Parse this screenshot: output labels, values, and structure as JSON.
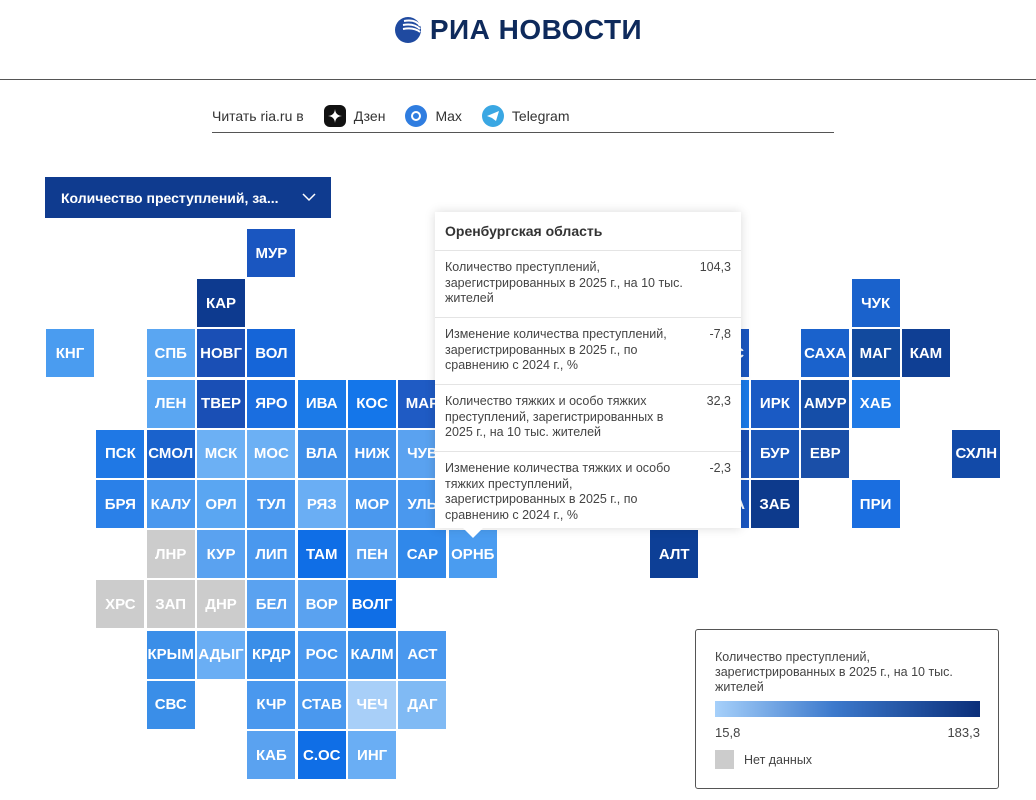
{
  "header": {
    "logo_text": "РИА НОВОСТИ"
  },
  "readbar": {
    "label": "Читать ria.ru в",
    "links": [
      {
        "label": "Дзен",
        "icon": "dzen-icon"
      },
      {
        "label": "Max",
        "icon": "max-icon"
      },
      {
        "label": "Telegram",
        "icon": "telegram-icon"
      }
    ]
  },
  "dropdown": {
    "selected": "Количество преступлений, за..."
  },
  "map": {
    "no_data_color": "#cccccc",
    "cells": [
      {
        "label": "МУР",
        "color": "#1a56c0"
      },
      {
        "label": "КАР",
        "color": "#0d3a8f"
      },
      {
        "label": "ЧУК",
        "color": "#1a62cc"
      },
      {
        "label": "КНГ",
        "color": "#4a9cf0"
      },
      {
        "label": "СПБ",
        "color": "#5aa6f2"
      },
      {
        "label": "НОВГ",
        "color": "#1a4fb5"
      },
      {
        "label": "ВОЛ",
        "color": "#1565d8"
      },
      {
        "label": "КРАС",
        "color": "#1a56c0"
      },
      {
        "label": "САХА",
        "color": "#1a62cc"
      },
      {
        "label": "МАГ",
        "color": "#124a9e"
      },
      {
        "label": "КАМ",
        "color": "#0f3f94"
      },
      {
        "label": "ЛЕН",
        "color": "#5aa6f2"
      },
      {
        "label": "ТВЕР",
        "color": "#1a4fb5"
      },
      {
        "label": "ЯРО",
        "color": "#1a6ee0"
      },
      {
        "label": "ИВА",
        "color": "#1b7ae8"
      },
      {
        "label": "КОС",
        "color": "#1476ea"
      },
      {
        "label": "МАР",
        "color": "#1f5bc4"
      },
      {
        "label": "",
        "color": "#1a7ae8"
      },
      {
        "label": "ИРК",
        "color": "#1a5ac4"
      },
      {
        "label": "АМУР",
        "color": "#154ea8"
      },
      {
        "label": "ХАБ",
        "color": "#1f7ae6"
      },
      {
        "label": "ПСК",
        "color": "#1f78e5"
      },
      {
        "label": "СМОЛ",
        "color": "#1a62cc"
      },
      {
        "label": "МСК",
        "color": "#6cb0f4"
      },
      {
        "label": "МОС",
        "color": "#6cb0f4"
      },
      {
        "label": "ВЛА",
        "color": "#3e8ee8"
      },
      {
        "label": "НИЖ",
        "color": "#4090ea"
      },
      {
        "label": "ЧУВ",
        "color": "#5aa2f0"
      },
      {
        "label": "",
        "color": "#1a4fb5"
      },
      {
        "label": "БУР",
        "color": "#1a56b8"
      },
      {
        "label": "ЕВР",
        "color": "#1a4fa8"
      },
      {
        "label": "СХЛН",
        "color": "#124aa8"
      },
      {
        "label": "БРЯ",
        "color": "#2a80e8"
      },
      {
        "label": "КАЛУ",
        "color": "#4a98ee"
      },
      {
        "label": "ОРЛ",
        "color": "#5aa6f2"
      },
      {
        "label": "ТУЛ",
        "color": "#4a98ee"
      },
      {
        "label": "РЯЗ",
        "color": "#6aaef4"
      },
      {
        "label": "МОР",
        "color": "#4a98ee"
      },
      {
        "label": "УЛЬ",
        "color": "#4a98ee"
      },
      {
        "label": "ХАКА",
        "color": "#1a56c0"
      },
      {
        "label": "ЗАБ",
        "color": "#0d3a8c"
      },
      {
        "label": "ПРИ",
        "color": "#1a6ee0"
      },
      {
        "label": "ЛНР",
        "color": "#cccccc"
      },
      {
        "label": "КУР",
        "color": "#5aa2f0"
      },
      {
        "label": "ЛИП",
        "color": "#4a98ee"
      },
      {
        "label": "ТАМ",
        "color": "#0f6ee6"
      },
      {
        "label": "ПЕН",
        "color": "#5aa2f0"
      },
      {
        "label": "САР",
        "color": "#3088ea"
      },
      {
        "label": "ОРНБ",
        "color": "#4a9cf0"
      },
      {
        "label": "АЛТ",
        "color": "#0d3f96"
      },
      {
        "label": "ХРС",
        "color": "#cccccc"
      },
      {
        "label": "ЗАП",
        "color": "#cccccc"
      },
      {
        "label": "ДНР",
        "color": "#cccccc"
      },
      {
        "label": "БЕЛ",
        "color": "#5aa2f0"
      },
      {
        "label": "ВОР",
        "color": "#5aa2f0"
      },
      {
        "label": "ВОЛГ",
        "color": "#0f6ee6"
      },
      {
        "label": "КРЫМ",
        "color": "#3a8ee8"
      },
      {
        "label": "АДЫГ",
        "color": "#6aaef4"
      },
      {
        "label": "КРДР",
        "color": "#3a8ee8"
      },
      {
        "label": "РОС",
        "color": "#4a98ee"
      },
      {
        "label": "КАЛМ",
        "color": "#3a8ee8"
      },
      {
        "label": "АСТ",
        "color": "#4a98ee"
      },
      {
        "label": "СВС",
        "color": "#3a8ee8"
      },
      {
        "label": "КЧР",
        "color": "#4a98ee"
      },
      {
        "label": "СТАВ",
        "color": "#4a98ee"
      },
      {
        "label": "ЧЕЧ",
        "color": "#a8cff8"
      },
      {
        "label": "ДАГ",
        "color": "#80baf4"
      },
      {
        "label": "КАБ",
        "color": "#5aa2f0"
      },
      {
        "label": "С.ОС",
        "color": "#0f6ee6"
      },
      {
        "label": "ИНГ",
        "color": "#6aaef4"
      }
    ]
  },
  "tooltip": {
    "title": "Оренбургская область",
    "rows": [
      {
        "label": "Количество преступлений, зарегистрированных в 2025 г., на 10 тыс. жителей",
        "value": "104,3"
      },
      {
        "label": "Изменение количества преступлений, зарегистрированных в 2025 г., по сравнению с 2024 г., %",
        "value": "-7,8"
      },
      {
        "label": "Количество тяжких и особо тяжких преступлений, зарегистрированных в 2025 г., на 10 тыс. жителей",
        "value": "32,3"
      },
      {
        "label": "Изменение количества тяжких и особо тяжких преступлений, зарегистрированных в 2025 г., по сравнению с 2024 г., %",
        "value": "-2,3"
      }
    ]
  },
  "legend": {
    "title": "Количество преступлений, зарегистрированных в 2025 г., на 10 тыс. жителей",
    "min": "15,8",
    "max": "183,3",
    "min_color": "#a6d0fa",
    "max_color": "#0b2f7a",
    "no_data_label": "Нет данных"
  }
}
